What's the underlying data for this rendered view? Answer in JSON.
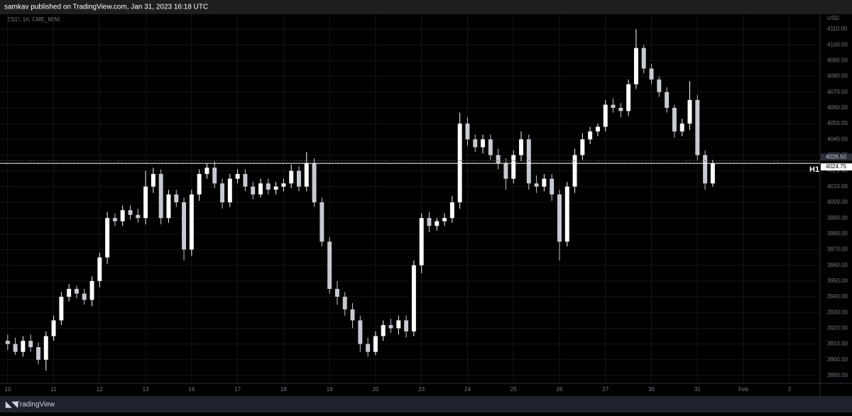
{
  "header": {
    "title": "samkav published on TradingView.com, Jan 31, 2023 16:18 UTC"
  },
  "footer": {
    "brand": "TradingView"
  },
  "chart_data": {
    "type": "candlestick",
    "symbol": "ES1!, 1h, CME_MINI",
    "currency": "USD",
    "up_color": "#ffffff",
    "down_color": "#c8cad2",
    "grid": true,
    "xlim": [
      -1,
      106
    ],
    "xticks": [
      {
        "value": 0,
        "label": "10"
      },
      {
        "value": 6,
        "label": "11"
      },
      {
        "value": 12,
        "label": "12"
      },
      {
        "value": 18,
        "label": "13"
      },
      {
        "value": 24,
        "label": "16"
      },
      {
        "value": 30,
        "label": "17"
      },
      {
        "value": 36,
        "label": "18"
      },
      {
        "value": 42,
        "label": "19"
      },
      {
        "value": 48,
        "label": "20"
      },
      {
        "value": 54,
        "label": "23"
      },
      {
        "value": 60,
        "label": "24"
      },
      {
        "value": 66,
        "label": "25"
      },
      {
        "value": 72,
        "label": "26"
      },
      {
        "value": 78,
        "label": "27"
      },
      {
        "value": 84,
        "label": "30"
      },
      {
        "value": 90,
        "label": "31"
      },
      {
        "value": 96,
        "label": "Feb"
      },
      {
        "value": 102,
        "label": "2"
      }
    ],
    "ylim": [
      3885,
      4119.5
    ],
    "yticks": [
      {
        "value": 3890,
        "label": "3890.00"
      },
      {
        "value": 3900,
        "label": "3900.00"
      },
      {
        "value": 3910,
        "label": "3910.00"
      },
      {
        "value": 3920,
        "label": "3920.00"
      },
      {
        "value": 3930,
        "label": "3930.00"
      },
      {
        "value": 3940,
        "label": "3940.00"
      },
      {
        "value": 3950,
        "label": "3950.00"
      },
      {
        "value": 3960,
        "label": "3960.00"
      },
      {
        "value": 3970,
        "label": "3970.00"
      },
      {
        "value": 3980,
        "label": "3980.00"
      },
      {
        "value": 3990,
        "label": "3990.00"
      },
      {
        "value": 4000,
        "label": "4000.00"
      },
      {
        "value": 4010,
        "label": "4010.00"
      },
      {
        "value": 4020,
        "label": "4020.00"
      },
      {
        "value": 4030,
        "label": "4030.00"
      },
      {
        "value": 4040,
        "label": "4040.00"
      },
      {
        "value": 4050,
        "label": "4050.00"
      },
      {
        "value": 4060,
        "label": "4060.00"
      },
      {
        "value": 4070,
        "label": "4070.00"
      },
      {
        "value": 4080,
        "label": "4080.00"
      },
      {
        "value": 4090,
        "label": "4090.00"
      },
      {
        "value": 4100,
        "label": "4100.00"
      },
      {
        "value": 4110,
        "label": "4110.00"
      }
    ],
    "price_lines": [
      {
        "value": 4026.5,
        "label": "4026.50"
      },
      {
        "value": 4024.75,
        "label": "4024.75",
        "name": "H1"
      }
    ],
    "open": [
      3912,
      3910,
      3905,
      3912,
      3908,
      3900,
      3915,
      3925,
      3940,
      3945,
      3942,
      3938,
      3950,
      3965,
      3990,
      3988,
      3995,
      3992,
      3990,
      4010,
      4018,
      3990,
      4005,
      4000,
      3970,
      4005,
      4018,
      4022,
      4012,
      4000,
      4015,
      4018,
      4010,
      4005,
      4012,
      4008,
      4010,
      4012,
      4020,
      4010,
      4025,
      4000,
      3975,
      3945,
      3940,
      3932,
      3925,
      3910,
      3905,
      3915,
      3922,
      3920,
      3925,
      3918,
      3960,
      3990,
      3985,
      3988,
      3990,
      4000,
      4050,
      4040,
      4035,
      4040,
      4030,
      4025,
      4015,
      4030,
      4040,
      4012,
      4010,
      4015,
      4005,
      3975,
      4010,
      4030,
      4040,
      4045,
      4048,
      4062,
      4060,
      4058,
      4075,
      4098,
      4085,
      4078,
      4070,
      4060,
      4045,
      4050,
      4065,
      4030,
      4012
    ],
    "high": [
      3916,
      3914,
      3915,
      3916,
      3911,
      3918,
      3928,
      3943,
      3948,
      3947,
      3945,
      3953,
      3968,
      3994,
      3993,
      3998,
      3998,
      3996,
      4020,
      4022,
      4021,
      4008,
      4008,
      4003,
      4008,
      4021,
      4025,
      4026,
      4015,
      4018,
      4021,
      4021,
      4013,
      4015,
      4015,
      4013,
      4015,
      4024,
      4023,
      4032,
      4028,
      4003,
      3978,
      3950,
      3943,
      3936,
      3928,
      3914,
      3918,
      3925,
      3926,
      3928,
      3928,
      3963,
      3993,
      3994,
      3990,
      3993,
      4004,
      4057,
      4054,
      4043,
      4043,
      4043,
      4034,
      4028,
      4033,
      4045,
      4043,
      4017,
      4018,
      4018,
      4008,
      4013,
      4034,
      4044,
      4048,
      4050,
      4065,
      4066,
      4063,
      4078,
      4110,
      4100,
      4088,
      4080,
      4073,
      4062,
      4053,
      4077,
      4068,
      4033,
      4027
    ],
    "low": [
      3906,
      3903,
      3902,
      3905,
      3897,
      3893,
      3912,
      3922,
      3937,
      3939,
      3935,
      3934,
      3946,
      3961,
      3985,
      3985,
      3989,
      3987,
      3986,
      4006,
      3986,
      3987,
      3997,
      3963,
      3966,
      4001,
      4015,
      4009,
      3996,
      3997,
      4012,
      4007,
      4002,
      4003,
      4005,
      4005,
      4007,
      4009,
      4007,
      4007,
      3997,
      3972,
      3942,
      3935,
      3928,
      3920,
      3905,
      3902,
      3903,
      3912,
      3917,
      3916,
      3914,
      3915,
      3955,
      3981,
      3982,
      3985,
      3987,
      3996,
      4036,
      4032,
      4031,
      4027,
      4021,
      4008,
      4012,
      4026,
      4008,
      4006,
      4007,
      4001,
      3963,
      3972,
      4006,
      4027,
      4037,
      4042,
      4045,
      4057,
      4054,
      4055,
      4072,
      4082,
      4075,
      4067,
      4057,
      4041,
      4042,
      4046,
      4027,
      4008,
      4010
    ],
    "close": [
      3910,
      3905,
      3912,
      3908,
      3900,
      3915,
      3925,
      3940,
      3945,
      3942,
      3938,
      3950,
      3965,
      3990,
      3988,
      3995,
      3992,
      3990,
      4010,
      4018,
      3990,
      4005,
      4000,
      3970,
      4005,
      4018,
      4022,
      4012,
      4000,
      4015,
      4018,
      4010,
      4005,
      4012,
      4008,
      4010,
      4012,
      4020,
      4010,
      4025,
      4000,
      3975,
      3945,
      3940,
      3932,
      3925,
      3910,
      3905,
      3915,
      3922,
      3920,
      3925,
      3918,
      3960,
      3990,
      3985,
      3988,
      3990,
      4000,
      4050,
      4040,
      4035,
      4040,
      4030,
      4025,
      4015,
      4030,
      4040,
      4012,
      4010,
      4015,
      4005,
      3975,
      4010,
      4030,
      4040,
      4045,
      4048,
      4062,
      4060,
      4058,
      4075,
      4098,
      4085,
      4078,
      4070,
      4060,
      4045,
      4050,
      4065,
      4030,
      4012,
      4024.75
    ]
  }
}
